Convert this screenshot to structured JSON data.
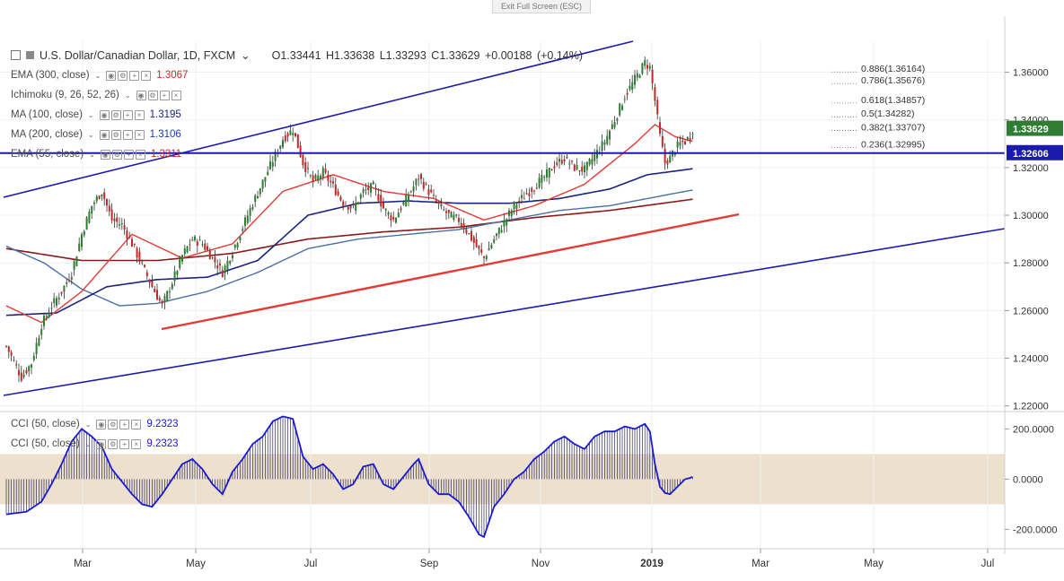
{
  "window": {
    "fullscreen_hint": "Exit Full Screen (ESC)"
  },
  "header": {
    "symbol": "U.S. Dollar/Canadian Dollar, 1D, FXCM",
    "ohlc": "O1.33441  H1.33638  L1.33293  C1.33629  +0.00188 (+0.14%)"
  },
  "indicators": [
    {
      "label": "EMA (300, close)",
      "value": "1.3067",
      "color": "#c62828"
    },
    {
      "label": "Ichimoku (9, 26, 52, 26)",
      "value": "",
      "color": "#4a4a4a"
    },
    {
      "label": "MA (100, close)",
      "value": "1.3195",
      "color": "#1a237e"
    },
    {
      "label": "MA (200, close)",
      "value": "1.3106",
      "color": "#1e3ca8"
    },
    {
      "label": "EMA (55, close)",
      "value": "1.3311",
      "color": "#c62828"
    }
  ],
  "cci_legend": [
    {
      "label": "CCI (50, close)",
      "value": "9.2323"
    },
    {
      "label": "CCI (50, close)",
      "value": "9.2323"
    }
  ],
  "colors": {
    "up": "#2e7d32",
    "down": "#c62828",
    "trend_blue": "#1a1aad",
    "support_red": "#e53935",
    "ema55": "#e53935",
    "ma100": "#1a237e",
    "ma200": "#4a6fa5",
    "ema300": "#8b1a1a",
    "cci_line": "#1a1ad6",
    "cci_band": "#ede0cc",
    "last_price_bg": "#2e7d32",
    "level_bg": "#1a1aad"
  },
  "chart_data": {
    "type": "candlestick",
    "price_axis": {
      "ticks": [
        "1.36000",
        "1.34000",
        "1.32000",
        "1.30000",
        "1.28000",
        "1.26000",
        "1.24000",
        "1.22000"
      ],
      "range": [
        1.218,
        1.373
      ]
    },
    "time_axis": [
      "Mar",
      "May",
      "Jul",
      "Sep",
      "Nov",
      "2019",
      "Mar",
      "May",
      "Jul"
    ],
    "last_price": "1.33629",
    "level_price": "1.32606",
    "fibonacci": [
      {
        "label": "0.886(1.36164)",
        "price": 1.36164
      },
      {
        "label": "0.786(1.35676)",
        "price": 1.35676
      },
      {
        "label": "0.618(1.34857)",
        "price": 1.34857
      },
      {
        "label": "0.5(1.34282)",
        "price": 1.34282
      },
      {
        "label": "0.382(1.33707)",
        "price": 1.33707
      },
      {
        "label": "0.236(1.32995)",
        "price": 1.32995
      }
    ],
    "close_anchors": [
      [
        0,
        1.245
      ],
      [
        6,
        1.232
      ],
      [
        10,
        1.238
      ],
      [
        14,
        1.254
      ],
      [
        18,
        1.262
      ],
      [
        22,
        1.268
      ],
      [
        26,
        1.276
      ],
      [
        30,
        1.292
      ],
      [
        34,
        1.304
      ],
      [
        38,
        1.31
      ],
      [
        42,
        1.298
      ],
      [
        46,
        1.296
      ],
      [
        50,
        1.288
      ],
      [
        54,
        1.279
      ],
      [
        58,
        1.27
      ],
      [
        62,
        1.262
      ],
      [
        66,
        1.272
      ],
      [
        70,
        1.283
      ],
      [
        74,
        1.29
      ],
      [
        78,
        1.288
      ],
      [
        82,
        1.282
      ],
      [
        86,
        1.276
      ],
      [
        90,
        1.285
      ],
      [
        94,
        1.295
      ],
      [
        98,
        1.305
      ],
      [
        102,
        1.314
      ],
      [
        106,
        1.323
      ],
      [
        110,
        1.332
      ],
      [
        114,
        1.336
      ],
      [
        118,
        1.322
      ],
      [
        122,
        1.314
      ],
      [
        126,
        1.318
      ],
      [
        130,
        1.312
      ],
      [
        134,
        1.305
      ],
      [
        138,
        1.303
      ],
      [
        142,
        1.31
      ],
      [
        146,
        1.312
      ],
      [
        150,
        1.303
      ],
      [
        154,
        1.298
      ],
      [
        158,
        1.305
      ],
      [
        162,
        1.312
      ],
      [
        164,
        1.316
      ],
      [
        168,
        1.31
      ],
      [
        172,
        1.304
      ],
      [
        176,
        1.3
      ],
      [
        180,
        1.298
      ],
      [
        184,
        1.292
      ],
      [
        188,
        1.285
      ],
      [
        190,
        1.282
      ],
      [
        194,
        1.29
      ],
      [
        198,
        1.297
      ],
      [
        202,
        1.304
      ],
      [
        206,
        1.308
      ],
      [
        210,
        1.312
      ],
      [
        214,
        1.316
      ],
      [
        218,
        1.321
      ],
      [
        222,
        1.324
      ],
      [
        226,
        1.32
      ],
      [
        230,
        1.319
      ],
      [
        234,
        1.325
      ],
      [
        238,
        1.331
      ],
      [
        242,
        1.34
      ],
      [
        246,
        1.35
      ],
      [
        250,
        1.357
      ],
      [
        254,
        1.364
      ],
      [
        256,
        1.362
      ],
      [
        258,
        1.348
      ],
      [
        260,
        1.333
      ],
      [
        262,
        1.322
      ],
      [
        264,
        1.324
      ],
      [
        266,
        1.328
      ],
      [
        268,
        1.33
      ],
      [
        270,
        1.331
      ],
      [
        272,
        1.333
      ],
      [
        273,
        1.336
      ]
    ],
    "ema55_anchors": [
      [
        0,
        1.262
      ],
      [
        14,
        1.255
      ],
      [
        30,
        1.268
      ],
      [
        50,
        1.292
      ],
      [
        70,
        1.282
      ],
      [
        90,
        1.288
      ],
      [
        110,
        1.31
      ],
      [
        130,
        1.317
      ],
      [
        150,
        1.31
      ],
      [
        170,
        1.307
      ],
      [
        190,
        1.298
      ],
      [
        210,
        1.304
      ],
      [
        230,
        1.313
      ],
      [
        250,
        1.33
      ],
      [
        258,
        1.338
      ],
      [
        266,
        1.333
      ],
      [
        273,
        1.331
      ]
    ],
    "ma100_anchors": [
      [
        0,
        1.258
      ],
      [
        20,
        1.259
      ],
      [
        40,
        1.27
      ],
      [
        60,
        1.273
      ],
      [
        80,
        1.274
      ],
      [
        100,
        1.281
      ],
      [
        120,
        1.3
      ],
      [
        140,
        1.305
      ],
      [
        160,
        1.306
      ],
      [
        180,
        1.305
      ],
      [
        200,
        1.305
      ],
      [
        220,
        1.307
      ],
      [
        240,
        1.311
      ],
      [
        255,
        1.317
      ],
      [
        273,
        1.3195
      ]
    ],
    "ma200_anchors": [
      [
        0,
        1.287
      ],
      [
        15,
        1.28
      ],
      [
        30,
        1.269
      ],
      [
        45,
        1.262
      ],
      [
        60,
        1.263
      ],
      [
        80,
        1.268
      ],
      [
        100,
        1.276
      ],
      [
        120,
        1.286
      ],
      [
        140,
        1.29
      ],
      [
        160,
        1.292
      ],
      [
        180,
        1.294
      ],
      [
        200,
        1.298
      ],
      [
        220,
        1.302
      ],
      [
        240,
        1.304
      ],
      [
        273,
        1.3106
      ]
    ],
    "ema300_anchors": [
      [
        0,
        1.286
      ],
      [
        30,
        1.281
      ],
      [
        60,
        1.281
      ],
      [
        90,
        1.284
      ],
      [
        120,
        1.29
      ],
      [
        150,
        1.293
      ],
      [
        180,
        1.295
      ],
      [
        210,
        1.299
      ],
      [
        240,
        1.302
      ],
      [
        273,
        1.3067
      ]
    ],
    "cci_axis": {
      "ticks": [
        "200.0000",
        "0.0000",
        "-200.0000"
      ],
      "range": [
        -270,
        255
      ]
    },
    "cci_anchors": [
      [
        0,
        -140
      ],
      [
        8,
        -130
      ],
      [
        14,
        -90
      ],
      [
        18,
        -20
      ],
      [
        22,
        60
      ],
      [
        26,
        150
      ],
      [
        30,
        200
      ],
      [
        34,
        170
      ],
      [
        38,
        130
      ],
      [
        42,
        40
      ],
      [
        46,
        -10
      ],
      [
        50,
        -60
      ],
      [
        54,
        -100
      ],
      [
        58,
        -110
      ],
      [
        62,
        -60
      ],
      [
        66,
        0
      ],
      [
        70,
        60
      ],
      [
        74,
        80
      ],
      [
        78,
        40
      ],
      [
        82,
        -20
      ],
      [
        86,
        -60
      ],
      [
        90,
        30
      ],
      [
        94,
        80
      ],
      [
        98,
        140
      ],
      [
        102,
        170
      ],
      [
        106,
        230
      ],
      [
        110,
        250
      ],
      [
        114,
        240
      ],
      [
        118,
        90
      ],
      [
        122,
        40
      ],
      [
        126,
        60
      ],
      [
        130,
        20
      ],
      [
        134,
        -40
      ],
      [
        138,
        -20
      ],
      [
        142,
        50
      ],
      [
        146,
        60
      ],
      [
        150,
        -20
      ],
      [
        154,
        -40
      ],
      [
        158,
        10
      ],
      [
        162,
        60
      ],
      [
        164,
        80
      ],
      [
        168,
        -20
      ],
      [
        172,
        -60
      ],
      [
        176,
        -60
      ],
      [
        180,
        -90
      ],
      [
        184,
        -150
      ],
      [
        188,
        -220
      ],
      [
        190,
        -230
      ],
      [
        194,
        -110
      ],
      [
        198,
        -60
      ],
      [
        202,
        0
      ],
      [
        206,
        30
      ],
      [
        210,
        80
      ],
      [
        214,
        110
      ],
      [
        218,
        150
      ],
      [
        222,
        170
      ],
      [
        226,
        140
      ],
      [
        230,
        120
      ],
      [
        234,
        170
      ],
      [
        238,
        190
      ],
      [
        242,
        190
      ],
      [
        246,
        210
      ],
      [
        250,
        200
      ],
      [
        254,
        220
      ],
      [
        256,
        190
      ],
      [
        258,
        60
      ],
      [
        260,
        -30
      ],
      [
        262,
        -55
      ],
      [
        264,
        -60
      ],
      [
        266,
        -40
      ],
      [
        268,
        -20
      ],
      [
        270,
        0
      ],
      [
        272,
        5
      ],
      [
        273,
        9
      ]
    ]
  }
}
